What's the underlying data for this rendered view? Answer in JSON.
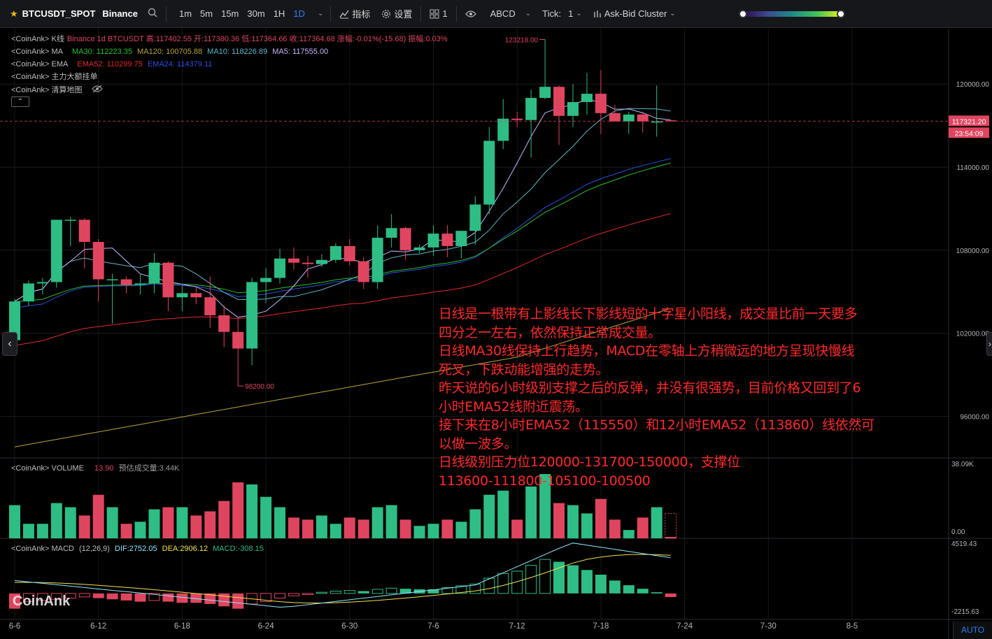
{
  "toolbar": {
    "symbol": "BTCUSDT_SPOT",
    "exchange": "Binance",
    "intervals": [
      "1m",
      "5m",
      "15m",
      "30m",
      "1H",
      "1D"
    ],
    "active_interval": "1D",
    "indicators_label": "指标",
    "settings_label": "设置",
    "layout_count": "1",
    "abcd_label": "ABCD",
    "tick_label": "Tick:",
    "tick_value": "1",
    "cluster_label": "Ask-Bid Cluster"
  },
  "legend": {
    "kline": {
      "prefix": "<CoinAnk> K线",
      "text": "Binance 1d BTCUSDT 高:117402.55 开:117380.36 低:117364.66 收:117364.68 涨幅:-0.01%(-15.68) 振幅:0.03%"
    },
    "ma": {
      "prefix": "<CoinAnk> MA",
      "ma30": "MA30: 112223.35",
      "ma120": "MA120: 100705.88",
      "ma10": "MA10: 118226.89",
      "ma5": "MA5: 117555.00"
    },
    "ema": {
      "prefix": "<CoinAnk> EMA",
      "ema52": "EMA52: 110299.75",
      "ema24": "EMA24: 114379.11"
    },
    "orders": "<CoinAnk> 主力大额挂单",
    "liq": "<CoinAnk> 清算地图",
    "volume": {
      "prefix": "<CoinAnk> VOLUME",
      "value": "13.90",
      "est": "预估成交量:3.44K"
    },
    "macd": {
      "prefix": "<CoinAnk> MACD",
      "params": "(12,26,9)",
      "dif": "DIF:2752.05",
      "dea": "DEA:2906.12",
      "macd": "MACD:-308.15"
    }
  },
  "price_axis": {
    "labels": [
      "120000.00",
      "114000.00",
      "108000.00",
      "102000.00",
      "96000.00"
    ],
    "current_price": "117321.20",
    "countdown": "23:54:09",
    "high_marker": "123218.00",
    "low_marker": "98200.00"
  },
  "volume_axis": {
    "top": "38.09K",
    "bottom": "0.00"
  },
  "macd_axis": {
    "top": "4519.43",
    "bottom": "-2215.63"
  },
  "date_axis": [
    "6-6",
    "6-12",
    "6-18",
    "6-24",
    "6-30",
    "7-6",
    "7-12",
    "7-18",
    "7-24",
    "7-30",
    "8-5"
  ],
  "auto_label": "AUTO",
  "watermark": "CoinAnk",
  "annotation": [
    "日线是一根带有上影线长下影线短的十字星小阳线，成交量比前一天要多",
    "四分之一左右，依然保持正常成交量。",
    "日线MA30线保持上行趋势，MACD在零轴上方稍微远的地方呈现快慢线",
    "死叉，下跌动能增强的走势。",
    "昨天说的6小时级别支撑之后的反弹，并没有很强势，目前价格又回到了6",
    "小时EMA52线附近震荡。",
    "接下来在8小时EMA52（115550）和12小时EMA52（113860）线依然可",
    "以做一波多。",
    "日线级别压力位120000-131700-150000，支撑位",
    "113600-111800-105100-100500"
  ],
  "colors": {
    "up": "#2ebd85",
    "down": "#e0455f",
    "ma5": "#c9b6ff",
    "ma10": "#5fb6c9",
    "ma30": "#28c228",
    "ma120": "#b8a43a",
    "ema24": "#2f4fe0",
    "ema52": "#e02a2a",
    "dif": "#8fe7ff",
    "dea": "#f3e24c",
    "text_red": "#ff2a2a"
  },
  "chart_data": {
    "type": "candlestick",
    "x": [
      "6-6",
      "6-7",
      "6-8",
      "6-9",
      "6-10",
      "6-11",
      "6-12",
      "6-13",
      "6-14",
      "6-15",
      "6-16",
      "6-17",
      "6-18",
      "6-19",
      "6-20",
      "6-21",
      "6-22",
      "6-23",
      "6-24",
      "6-25",
      "6-26",
      "6-27",
      "6-28",
      "6-29",
      "6-30",
      "7-1",
      "7-2",
      "7-3",
      "7-4",
      "7-5",
      "7-6",
      "7-7",
      "7-8",
      "7-9",
      "7-10",
      "7-11",
      "7-12",
      "7-13",
      "7-14",
      "7-15",
      "7-16",
      "7-17",
      "7-18",
      "7-19",
      "7-20",
      "7-21",
      "7-22",
      "7-23"
    ],
    "ohlc": [
      [
        101500,
        104500,
        101400,
        104300
      ],
      [
        104300,
        105800,
        104000,
        105600
      ],
      [
        105600,
        106000,
        104800,
        105700
      ],
      [
        105700,
        110000,
        105300,
        110200
      ],
      [
        110200,
        110400,
        108300,
        110200
      ],
      [
        110200,
        110300,
        106700,
        108600
      ],
      [
        108600,
        108800,
        104300,
        105900
      ],
      [
        105900,
        106300,
        102700,
        105900
      ],
      [
        105900,
        106100,
        104900,
        105500
      ],
      [
        105500,
        106300,
        104800,
        105600
      ],
      [
        105600,
        107800,
        104900,
        107100
      ],
      [
        107100,
        107200,
        103600,
        104600
      ],
      [
        104600,
        105400,
        103600,
        104900
      ],
      [
        104900,
        105300,
        104100,
        104600
      ],
      [
        104600,
        106100,
        102400,
        103300
      ],
      [
        103300,
        104000,
        101000,
        102100
      ],
      [
        102100,
        103100,
        98200,
        100900
      ],
      [
        100900,
        106000,
        99700,
        105700
      ],
      [
        105700,
        106700,
        104200,
        106000
      ],
      [
        106000,
        108100,
        105600,
        107400
      ],
      [
        107400,
        108200,
        106600,
        107100
      ],
      [
        107100,
        107600,
        106000,
        107000
      ],
      [
        107000,
        107700,
        106800,
        107300
      ],
      [
        107300,
        108500,
        107100,
        108300
      ],
      [
        108300,
        108800,
        106900,
        107200
      ],
      [
        107200,
        107500,
        105200,
        105700
      ],
      [
        105700,
        109800,
        105200,
        108900
      ],
      [
        108900,
        110600,
        108200,
        109600
      ],
      [
        109600,
        109700,
        107300,
        108000
      ],
      [
        108000,
        108400,
        107800,
        108200
      ],
      [
        108200,
        109800,
        107600,
        109200
      ],
      [
        109200,
        109800,
        107500,
        108300
      ],
      [
        108300,
        109200,
        107400,
        109400
      ],
      [
        109400,
        111900,
        108400,
        111300
      ],
      [
        111300,
        116900,
        110600,
        115900
      ],
      [
        115900,
        118900,
        115300,
        117500
      ],
      [
        117500,
        118000,
        116900,
        117400
      ],
      [
        117400,
        119600,
        114700,
        119000
      ],
      [
        119000,
        123218,
        118900,
        119800
      ],
      [
        119800,
        119900,
        115600,
        117700
      ],
      [
        117700,
        120000,
        116900,
        118700
      ],
      [
        118700,
        120800,
        117800,
        119300
      ],
      [
        119300,
        121000,
        116400,
        117900
      ],
      [
        117900,
        118500,
        117300,
        117300
      ],
      [
        117300,
        118000,
        116400,
        117800
      ],
      [
        117800,
        118000,
        116500,
        117300
      ],
      [
        117300,
        119900,
        116200,
        117300
      ],
      [
        117380,
        117402,
        117364,
        117364
      ]
    ],
    "volume": [
      16,
      7,
      7,
      17,
      15,
      11,
      21,
      15,
      7,
      8,
      14,
      15,
      15,
      11,
      13,
      18,
      27,
      26,
      20,
      15,
      10,
      9,
      11,
      7,
      10,
      9,
      15,
      16,
      9,
      6,
      7,
      9,
      8,
      14,
      21,
      23,
      9,
      25,
      31,
      17,
      16,
      12,
      19,
      9,
      4,
      10,
      15,
      3.44
    ],
    "macd_hist": [
      -1300,
      -700,
      -600,
      -500,
      -400,
      -300,
      -400,
      -500,
      -600,
      -700,
      -600,
      -700,
      -800,
      -800,
      -900,
      -1100,
      -1300,
      -900,
      -700,
      -400,
      -200,
      -100,
      100,
      200,
      250,
      200,
      350,
      450,
      400,
      350,
      350,
      500,
      650,
      800,
      1300,
      1700,
      1900,
      2400,
      2900,
      2700,
      2400,
      2000,
      1600,
      1100,
      700,
      400,
      100,
      -308
    ],
    "ylim": [
      93000,
      124000
    ],
    "volume_ylim": [
      0,
      38090
    ],
    "macd_ylim": [
      -2215.63,
      4519.43
    ]
  }
}
